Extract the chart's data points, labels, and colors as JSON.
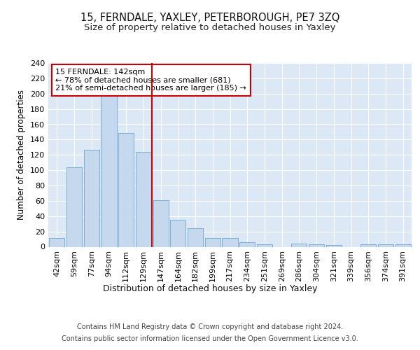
{
  "title": "15, FERNDALE, YAXLEY, PETERBOROUGH, PE7 3ZQ",
  "subtitle": "Size of property relative to detached houses in Yaxley",
  "xlabel": "Distribution of detached houses by size in Yaxley",
  "ylabel": "Number of detached properties",
  "bar_color": "#c5d8ee",
  "bar_edge_color": "#7aafd4",
  "background_color": "#dce8f5",
  "grid_color": "#ffffff",
  "categories": [
    "42sqm",
    "59sqm",
    "77sqm",
    "94sqm",
    "112sqm",
    "129sqm",
    "147sqm",
    "164sqm",
    "182sqm",
    "199sqm",
    "217sqm",
    "234sqm",
    "251sqm",
    "269sqm",
    "286sqm",
    "304sqm",
    "321sqm",
    "339sqm",
    "356sqm",
    "374sqm",
    "391sqm"
  ],
  "values": [
    11,
    104,
    127,
    197,
    149,
    124,
    61,
    35,
    24,
    11,
    11,
    6,
    3,
    0,
    4,
    3,
    2,
    0,
    3,
    3,
    3
  ],
  "ylim": [
    0,
    240
  ],
  "yticks": [
    0,
    20,
    40,
    60,
    80,
    100,
    120,
    140,
    160,
    180,
    200,
    220,
    240
  ],
  "vline_color": "#cc0000",
  "annotation_text": "15 FERNDALE: 142sqm\n← 78% of detached houses are smaller (681)\n21% of semi-detached houses are larger (185) →",
  "annotation_box_color": "#ffffff",
  "annotation_box_edge": "#cc0000",
  "footer_line1": "Contains HM Land Registry data © Crown copyright and database right 2024.",
  "footer_line2": "Contains public sector information licensed under the Open Government Licence v3.0.",
  "title_fontsize": 10.5,
  "subtitle_fontsize": 9.5,
  "tick_fontsize": 8,
  "ylabel_fontsize": 8.5,
  "xlabel_fontsize": 9,
  "footer_fontsize": 7,
  "annotation_fontsize": 8
}
